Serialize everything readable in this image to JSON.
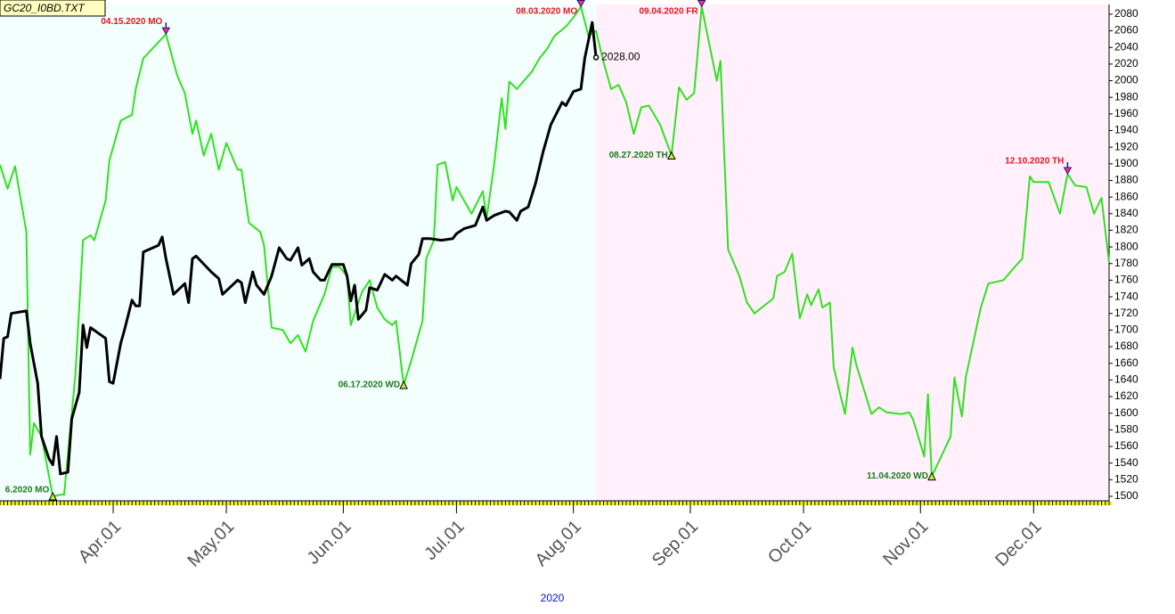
{
  "chart_data": {
    "type": "line",
    "title": "GC20_I0BD.TXT",
    "year_label": "2020",
    "xlim": [
      "2020-03-02",
      "2020-12-21"
    ],
    "xticks": [
      {
        "value": "2020-04-01",
        "label": "Apr.01"
      },
      {
        "value": "2020-05-01",
        "label": "May.01"
      },
      {
        "value": "2020-06-01",
        "label": "Jun.01"
      },
      {
        "value": "2020-07-01",
        "label": "Jul.01"
      },
      {
        "value": "2020-08-01",
        "label": "Aug.01"
      },
      {
        "value": "2020-09-01",
        "label": "Sep.01"
      },
      {
        "value": "2020-10-01",
        "label": "Oct.01"
      },
      {
        "value": "2020-11-01",
        "label": "Nov.01"
      },
      {
        "value": "2020-12-01",
        "label": "Dec.01"
      }
    ],
    "ylim": [
      1494.6,
      2091.7
    ],
    "yticks": [
      1500,
      1520,
      1540,
      1560,
      1580,
      1600,
      1620,
      1640,
      1660,
      1680,
      1700,
      1720,
      1740,
      1760,
      1780,
      1800,
      1820,
      1840,
      1860,
      1880,
      1900,
      1920,
      1940,
      1960,
      1980,
      2000,
      2020,
      2040,
      2060,
      2080
    ],
    "grid": false,
    "shaded_regions": [
      {
        "start": "2020-03-02",
        "end": "2020-08-07",
        "color": "#f3fffd"
      },
      {
        "start": "2020-08-07",
        "end": "2020-12-21",
        "color": "#fff0fb"
      }
    ],
    "series": [
      {
        "color": "#33e022",
        "width": 2,
        "x": [
          "2020-03-02",
          "2020-03-04",
          "2020-03-06",
          "2020-03-09",
          "2020-03-10",
          "2020-03-11",
          "2020-03-13",
          "2020-03-16",
          "2020-03-18",
          "2020-03-19",
          "2020-03-22",
          "2020-03-24",
          "2020-03-26",
          "2020-03-27",
          "2020-03-30",
          "2020-03-31",
          "2020-04-03",
          "2020-04-06",
          "2020-04-07",
          "2020-04-09",
          "2020-04-15",
          "2020-04-18",
          "2020-04-20",
          "2020-04-22",
          "2020-04-23",
          "2020-04-25",
          "2020-04-27",
          "2020-04-29",
          "2020-05-01",
          "2020-05-04",
          "2020-05-05",
          "2020-05-07",
          "2020-05-10",
          "2020-05-11",
          "2020-05-13",
          "2020-05-16",
          "2020-05-18",
          "2020-05-20",
          "2020-05-22",
          "2020-05-24",
          "2020-05-27",
          "2020-05-29",
          "2020-05-31",
          "2020-06-02",
          "2020-06-03",
          "2020-06-05",
          "2020-06-06",
          "2020-06-08",
          "2020-06-10",
          "2020-06-12",
          "2020-06-14",
          "2020-06-15",
          "2020-06-17",
          "2020-06-19",
          "2020-06-22",
          "2020-06-23",
          "2020-06-25",
          "2020-06-26",
          "2020-06-28",
          "2020-06-30",
          "2020-07-01",
          "2020-07-05",
          "2020-07-08",
          "2020-07-09",
          "2020-07-11",
          "2020-07-13",
          "2020-07-14",
          "2020-07-15",
          "2020-07-17",
          "2020-07-21",
          "2020-07-23",
          "2020-07-25",
          "2020-07-27",
          "2020-07-30",
          "2020-08-01",
          "2020-08-03",
          "2020-08-05",
          "2020-08-07",
          "2020-08-09",
          "2020-08-11",
          "2020-08-13",
          "2020-08-15",
          "2020-08-17",
          "2020-08-19",
          "2020-08-21",
          "2020-08-24",
          "2020-08-27",
          "2020-08-29",
          "2020-08-31",
          "2020-09-02",
          "2020-09-04",
          "2020-09-07",
          "2020-09-08",
          "2020-09-09",
          "2020-09-11",
          "2020-09-14",
          "2020-09-16",
          "2020-09-18",
          "2020-09-23",
          "2020-09-24",
          "2020-09-26",
          "2020-09-28",
          "2020-09-30",
          "2020-10-02",
          "2020-10-03",
          "2020-10-05",
          "2020-10-06",
          "2020-10-08",
          "2020-10-09",
          "2020-10-12",
          "2020-10-14",
          "2020-10-15",
          "2020-10-19",
          "2020-10-21",
          "2020-10-23",
          "2020-10-27",
          "2020-10-29",
          "2020-10-30",
          "2020-11-02",
          "2020-11-03",
          "2020-11-04",
          "2020-11-09",
          "2020-11-10",
          "2020-11-12",
          "2020-11-13",
          "2020-11-17",
          "2020-11-19",
          "2020-11-23",
          "2020-11-26",
          "2020-11-28",
          "2020-11-30",
          "2020-12-01",
          "2020-12-05",
          "2020-12-08",
          "2020-12-10",
          "2020-12-12",
          "2020-12-15",
          "2020-12-17",
          "2020-12-19",
          "2020-12-21"
        ],
        "values": [
          1899,
          1870,
          1897,
          1818,
          1550,
          1588,
          1572,
          1500,
          1502,
          1502,
          1647,
          1808,
          1814,
          1808,
          1856,
          1904,
          1952,
          1959,
          1990,
          2027,
          2056,
          2006,
          1985,
          1936,
          1952,
          1910,
          1936,
          1893,
          1925,
          1893,
          1893,
          1829,
          1818,
          1802,
          1703,
          1700,
          1684,
          1694,
          1674,
          1711,
          1743,
          1776,
          1776,
          1765,
          1706,
          1733,
          1746,
          1760,
          1727,
          1713,
          1706,
          1711,
          1634,
          1663,
          1711,
          1786,
          1808,
          1899,
          1902,
          1856,
          1872,
          1840,
          1867,
          1835,
          1899,
          1979,
          1942,
          1999,
          1990,
          2011,
          2027,
          2038,
          2054,
          2065,
          2076,
          2089,
          2054,
          2060,
          2022,
          1990,
          1995,
          1974,
          1936,
          1968,
          1970,
          1947,
          1910,
          1992,
          1977,
          1985,
          2089,
          2022,
          2000,
          2024,
          1797,
          1765,
          1733,
          1720,
          1738,
          1765,
          1770,
          1792,
          1714,
          1743,
          1730,
          1749,
          1727,
          1733,
          1655,
          1599,
          1679,
          1658,
          1599,
          1607,
          1601,
          1599,
          1601,
          1593,
          1548,
          1623,
          1524,
          1572,
          1643,
          1596,
          1643,
          1727,
          1756,
          1760,
          1776,
          1786,
          1885,
          1878,
          1878,
          1840,
          1888,
          1874,
          1872,
          1840,
          1859,
          1781
        ]
      },
      {
        "color": "#000000",
        "width": 3,
        "last_value_label": "2028.00",
        "x": [
          "2020-03-02",
          "2020-03-03",
          "2020-03-04",
          "2020-03-05",
          "2020-03-09",
          "2020-03-10",
          "2020-03-12",
          "2020-03-13",
          "2020-03-15",
          "2020-03-16",
          "2020-03-17",
          "2020-03-18",
          "2020-03-20",
          "2020-03-21",
          "2020-03-23",
          "2020-03-24",
          "2020-03-25",
          "2020-03-26",
          "2020-03-30",
          "2020-03-31",
          "2020-04-01",
          "2020-04-03",
          "2020-04-04",
          "2020-04-06",
          "2020-04-07",
          "2020-04-08",
          "2020-04-09",
          "2020-04-13",
          "2020-04-14",
          "2020-04-15",
          "2020-04-17",
          "2020-04-20",
          "2020-04-21",
          "2020-04-22",
          "2020-04-23",
          "2020-04-27",
          "2020-04-29",
          "2020-04-30",
          "2020-05-04",
          "2020-05-05",
          "2020-05-06",
          "2020-05-08",
          "2020-05-09",
          "2020-05-11",
          "2020-05-13",
          "2020-05-15",
          "2020-05-17",
          "2020-05-18",
          "2020-05-20",
          "2020-05-21",
          "2020-05-23",
          "2020-05-24",
          "2020-05-26",
          "2020-05-27",
          "2020-05-29",
          "2020-06-01",
          "2020-06-02",
          "2020-06-03",
          "2020-06-04",
          "2020-06-05",
          "2020-06-07",
          "2020-06-08",
          "2020-06-10",
          "2020-06-12",
          "2020-06-14",
          "2020-06-15",
          "2020-06-18",
          "2020-06-19",
          "2020-06-21",
          "2020-06-22",
          "2020-06-24",
          "2020-06-27",
          "2020-06-30",
          "2020-07-01",
          "2020-07-03",
          "2020-07-06",
          "2020-07-08",
          "2020-07-09",
          "2020-07-11",
          "2020-07-14",
          "2020-07-15",
          "2020-07-17",
          "2020-07-18",
          "2020-07-20",
          "2020-07-22",
          "2020-07-24",
          "2020-07-26",
          "2020-07-29",
          "2020-07-30",
          "2020-08-01",
          "2020-08-03",
          "2020-08-04",
          "2020-08-06",
          "2020-08-07"
        ],
        "values": [
          1641,
          1690,
          1692,
          1720,
          1723,
          1684,
          1636,
          1572,
          1545,
          1538,
          1572,
          1527,
          1529,
          1593,
          1625,
          1706,
          1679,
          1703,
          1690,
          1638,
          1636,
          1684,
          1700,
          1736,
          1729,
          1729,
          1794,
          1802,
          1812,
          1786,
          1743,
          1756,
          1733,
          1786,
          1789,
          1770,
          1762,
          1743,
          1760,
          1757,
          1733,
          1770,
          1754,
          1743,
          1765,
          1799,
          1786,
          1784,
          1799,
          1778,
          1786,
          1770,
          1760,
          1760,
          1779,
          1779,
          1765,
          1735,
          1754,
          1713,
          1724,
          1751,
          1748,
          1767,
          1760,
          1765,
          1754,
          1780,
          1791,
          1810,
          1810,
          1808,
          1810,
          1816,
          1822,
          1826,
          1848,
          1832,
          1838,
          1843,
          1842,
          1832,
          1843,
          1848,
          1877,
          1915,
          1947,
          1974,
          1970,
          1987,
          1990,
          2027,
          2070,
          2028
        ]
      }
    ],
    "annotations": [
      {
        "x": "2020-03-16",
        "text": "6.2020 MO",
        "marker": "up",
        "color": "#1a7a1a"
      },
      {
        "x": "2020-04-15",
        "text": "04.15.2020 MO",
        "marker": "down",
        "color": "#e3141e"
      },
      {
        "x": "2020-06-17",
        "text": "06.17.2020 WD",
        "marker": "up",
        "color": "#1a7a1a"
      },
      {
        "x": "2020-08-03",
        "text": "08.03.2020 MO",
        "marker": "down",
        "color": "#e3141e"
      },
      {
        "x": "2020-08-27",
        "text": "08.27.2020 TH",
        "marker": "up",
        "color": "#1a7a1a"
      },
      {
        "x": "2020-09-04",
        "text": "09.04.2020 FR",
        "marker": "down",
        "color": "#e3141e"
      },
      {
        "x": "2020-11-04",
        "text": "11.04.2020 WD",
        "marker": "up",
        "color": "#1a7a1a"
      },
      {
        "x": "2020-12-10",
        "text": "12.10.2020 TH",
        "marker": "down",
        "color": "#e3141e"
      }
    ]
  }
}
